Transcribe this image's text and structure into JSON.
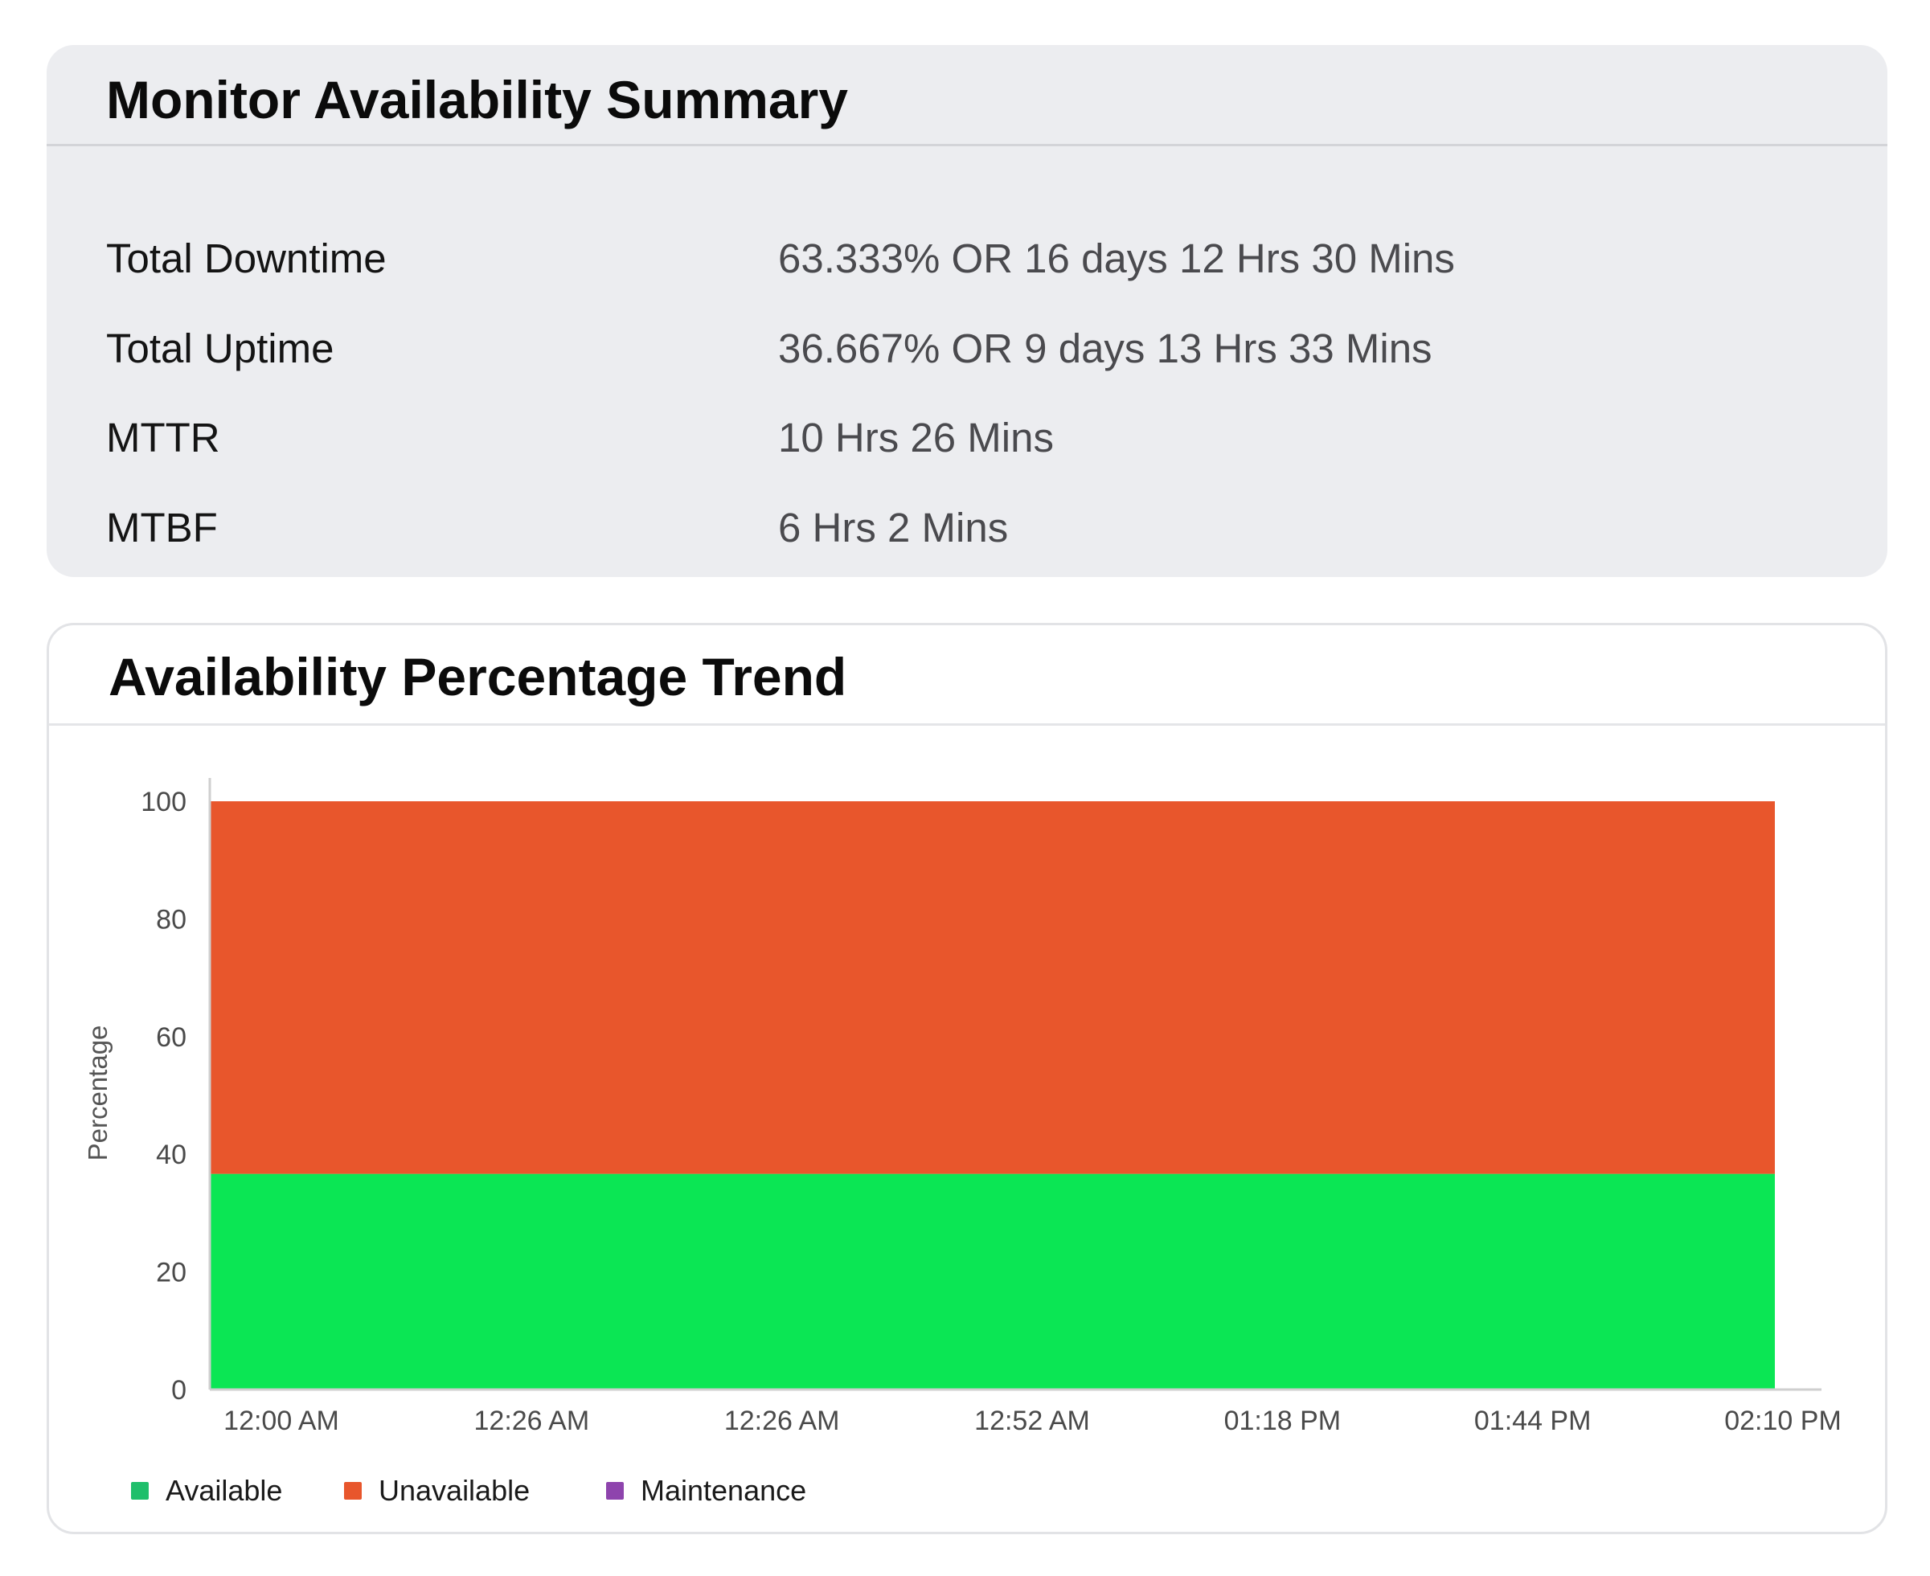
{
  "summary": {
    "title": "Monitor Availability Summary",
    "rows": [
      {
        "label": "Total Downtime",
        "value": "63.333% OR 16 days 12 Hrs 30 Mins"
      },
      {
        "label": "Total Uptime",
        "value": "36.667% OR 9 days 13 Hrs 33 Mins"
      },
      {
        "label": "MTTR",
        "value": "10 Hrs 26 Mins"
      },
      {
        "label": "MTBF",
        "value": "6 Hrs 2 Mins"
      }
    ]
  },
  "trend": {
    "title": "Availability Percentage Trend"
  },
  "chart_data": {
    "type": "area",
    "title": "Availability Percentage Trend",
    "xlabel": "",
    "ylabel": "Percentage",
    "x": [
      "12:00 AM",
      "12:26 AM",
      "12:26 AM",
      "12:52 AM",
      "01:18 PM",
      "01:44 PM",
      "02:10 PM"
    ],
    "ylim": [
      0,
      100
    ],
    "yticks": [
      0,
      20,
      40,
      60,
      80,
      100
    ],
    "stacked": true,
    "grid": false,
    "legend_position": "bottom-left",
    "series": [
      {
        "name": "Available",
        "color": "#0be654",
        "legend_color": "#1fbf6b",
        "values": [
          36.667,
          36.667,
          36.667,
          36.667,
          36.667,
          36.667,
          36.667
        ]
      },
      {
        "name": "Unavailable",
        "color": "#e8562c",
        "legend_color": "#e8562c",
        "values": [
          63.333,
          63.333,
          63.333,
          63.333,
          63.333,
          63.333,
          63.333
        ]
      },
      {
        "name": "Maintenance",
        "color": "#8e44ad",
        "legend_color": "#8e44ad",
        "values": [
          0,
          0,
          0,
          0,
          0,
          0,
          0
        ]
      }
    ]
  }
}
